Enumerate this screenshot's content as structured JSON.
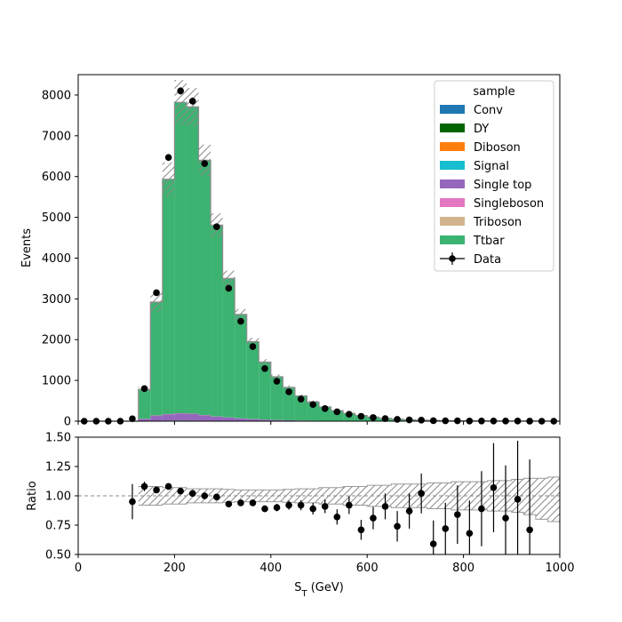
{
  "chart_data": {
    "type": "bar",
    "stacked": true,
    "x_bin_edges": [
      0,
      25,
      50,
      75,
      100,
      125,
      150,
      175,
      200,
      225,
      250,
      275,
      300,
      325,
      350,
      375,
      400,
      425,
      450,
      475,
      500,
      525,
      550,
      575,
      600,
      625,
      650,
      675,
      700,
      725,
      750,
      775,
      800,
      825,
      850,
      875,
      900,
      925,
      950,
      975,
      1000
    ],
    "series": [
      {
        "name": "Conv",
        "color": "#1f77b4",
        "values": [
          0,
          0,
          0,
          0,
          0,
          0,
          0,
          0,
          0,
          0,
          0,
          0,
          0,
          0,
          0,
          0,
          0,
          0,
          0,
          0,
          0,
          0,
          0,
          0,
          0,
          0,
          0,
          0,
          0,
          0,
          0,
          0,
          0,
          0,
          0,
          0,
          0,
          0,
          0,
          0
        ]
      },
      {
        "name": "DY",
        "color": "#006400",
        "values": [
          0,
          0,
          0,
          0,
          0,
          5,
          10,
          15,
          15,
          15,
          12,
          10,
          8,
          6,
          5,
          4,
          3,
          2,
          2,
          1,
          1,
          1,
          1,
          0,
          0,
          0,
          0,
          0,
          0,
          0,
          0,
          0,
          0,
          0,
          0,
          0,
          0,
          0,
          0,
          0
        ]
      },
      {
        "name": "Diboson",
        "color": "#ff7f0e",
        "values": [
          0,
          0,
          0,
          0,
          0,
          0,
          0,
          0,
          0,
          0,
          0,
          0,
          0,
          0,
          0,
          0,
          0,
          0,
          0,
          0,
          0,
          0,
          0,
          0,
          0,
          0,
          0,
          0,
          0,
          0,
          0,
          0,
          0,
          0,
          0,
          0,
          0,
          0,
          0,
          0
        ]
      },
      {
        "name": "Signal",
        "color": "#17becf",
        "values": [
          0,
          0,
          0,
          0,
          0,
          0,
          0,
          0,
          0,
          0,
          0,
          0,
          0,
          0,
          0,
          0,
          0,
          0,
          0,
          0,
          0,
          0,
          0,
          0,
          0,
          0,
          0,
          0,
          0,
          0,
          0,
          0,
          0,
          0,
          0,
          0,
          0,
          0,
          0,
          0
        ]
      },
      {
        "name": "Single top",
        "color": "#9467bd",
        "values": [
          0,
          0,
          0,
          0,
          0,
          50,
          120,
          150,
          170,
          160,
          130,
          100,
          80,
          60,
          45,
          35,
          25,
          20,
          15,
          12,
          9,
          7,
          5,
          4,
          3,
          3,
          2,
          2,
          1,
          1,
          1,
          1,
          0,
          0,
          0,
          0,
          0,
          0,
          0,
          0
        ]
      },
      {
        "name": "Singleboson",
        "color": "#e377c2",
        "values": [
          0,
          0,
          0,
          0,
          0,
          5,
          10,
          10,
          10,
          10,
          8,
          6,
          5,
          4,
          3,
          2,
          2,
          1,
          1,
          1,
          1,
          0,
          0,
          0,
          0,
          0,
          0,
          0,
          0,
          0,
          0,
          0,
          0,
          0,
          0,
          0,
          0,
          0,
          0,
          0
        ]
      },
      {
        "name": "Triboson",
        "color": "#d2b48c",
        "values": [
          0,
          0,
          0,
          0,
          0,
          0,
          0,
          0,
          0,
          0,
          0,
          0,
          0,
          0,
          0,
          0,
          0,
          0,
          0,
          0,
          0,
          0,
          0,
          0,
          0,
          0,
          0,
          0,
          0,
          0,
          0,
          0,
          0,
          0,
          0,
          0,
          0,
          0,
          0,
          0
        ]
      },
      {
        "name": "Ttbar",
        "color": "#3cb371",
        "values": [
          0,
          0,
          0,
          0,
          0,
          720,
          2780,
          5760,
          7625,
          7525,
          6250,
          4694,
          3407,
          2550,
          1895,
          1409,
          1060,
          807,
          602,
          456,
          339,
          252,
          184,
          136,
          97,
          67,
          47,
          33,
          24,
          18,
          14,
          10,
          8,
          6,
          5,
          4,
          3,
          2,
          2,
          1
        ]
      }
    ],
    "mc_total": [
      0,
      0,
      0,
      0,
      0,
      780,
      2920,
      5935,
      7820,
      7710,
      6400,
      4810,
      3500,
      2620,
      1948,
      1450,
      1090,
      830,
      620,
      470,
      350,
      260,
      190,
      140,
      100,
      70,
      49,
      35,
      25,
      19,
      15,
      11,
      8,
      6,
      5,
      4,
      3,
      2,
      2,
      1
    ],
    "uncertainty": {
      "hatched": true,
      "rel_up": [
        0,
        0,
        0,
        0,
        0.08,
        0.08,
        0.08,
        0.07,
        0.07,
        0.06,
        0.06,
        0.06,
        0.055,
        0.05,
        0.05,
        0.05,
        0.05,
        0.055,
        0.06,
        0.06,
        0.07,
        0.07,
        0.08,
        0.08,
        0.09,
        0.09,
        0.1,
        0.1,
        0.1,
        0.11,
        0.11,
        0.12,
        0.12,
        0.12,
        0.13,
        0.13,
        0.14,
        0.15,
        0.15,
        0.16
      ],
      "rel_down": [
        0,
        0,
        0,
        0,
        0.08,
        0.08,
        0.08,
        0.07,
        0.07,
        0.06,
        0.06,
        0.06,
        0.055,
        0.05,
        0.05,
        0.05,
        0.05,
        0.055,
        0.06,
        0.06,
        0.07,
        0.07,
        0.08,
        0.08,
        0.09,
        0.09,
        0.1,
        0.1,
        0.1,
        0.11,
        0.11,
        0.12,
        0.12,
        0.12,
        0.13,
        0.13,
        0.14,
        0.16,
        0.2,
        0.22
      ]
    },
    "data": {
      "name": "Data",
      "x": [
        12.5,
        37.5,
        62.5,
        87.5,
        112.5,
        137.5,
        162.5,
        187.5,
        212.5,
        237.5,
        262.5,
        287.5,
        312.5,
        337.5,
        362.5,
        387.5,
        412.5,
        437.5,
        462.5,
        487.5,
        512.5,
        537.5,
        562.5,
        587.5,
        612.5,
        637.5,
        662.5,
        687.5,
        712.5,
        737.5,
        762.5,
        787.5,
        812.5,
        837.5,
        862.5,
        887.5,
        912.5,
        937.5,
        962.5,
        987.5
      ],
      "y": [
        0,
        0,
        0,
        0,
        60,
        800,
        3150,
        6470,
        8100,
        7850,
        6320,
        4770,
        3260,
        2450,
        1830,
        1290,
        980,
        720,
        540,
        410,
        310,
        230,
        170,
        120,
        90,
        65,
        45,
        32,
        25,
        12,
        10,
        9,
        5,
        5,
        5,
        3,
        3,
        1,
        0,
        0
      ],
      "ratio": [
        null,
        null,
        null,
        null,
        0.95,
        1.08,
        1.05,
        1.08,
        1.04,
        1.02,
        1.0,
        0.99,
        0.93,
        0.94,
        0.94,
        0.89,
        0.9,
        0.92,
        0.92,
        0.89,
        0.91,
        0.82,
        0.92,
        0.71,
        0.81,
        0.91,
        0.74,
        0.87,
        1.02,
        0.59,
        0.72,
        0.84,
        0.68,
        0.89,
        1.07,
        0.81,
        0.97,
        0.71,
        null,
        null
      ],
      "ratio_err": [
        null,
        null,
        null,
        null,
        0.15,
        0.04,
        0.02,
        0.015,
        0.012,
        0.012,
        0.012,
        0.015,
        0.018,
        0.02,
        0.025,
        0.028,
        0.032,
        0.038,
        0.043,
        0.05,
        0.058,
        0.065,
        0.075,
        0.085,
        0.095,
        0.11,
        0.13,
        0.15,
        0.17,
        0.2,
        0.22,
        0.25,
        0.28,
        0.32,
        0.38,
        0.45,
        0.5,
        0.6,
        null,
        null
      ]
    },
    "xlabel": "S",
    "xlabel_sub": "T",
    "xlabel_unit": " (GeV)",
    "ylabel": "Events",
    "ratio_ylabel": "Ratio",
    "xlim": [
      0,
      1000
    ],
    "ylim": [
      0,
      8500
    ],
    "ratio_ylim": [
      0.5,
      1.5
    ],
    "x_ticks": [
      0,
      200,
      400,
      600,
      800,
      1000
    ],
    "y_ticks": [
      0,
      1000,
      2000,
      3000,
      4000,
      5000,
      6000,
      7000,
      8000
    ],
    "ratio_y_ticks": [
      0.5,
      0.75,
      1.0,
      1.25,
      1.5
    ],
    "ratio_y_tick_labels": [
      "0.50",
      "0.75",
      "1.00",
      "1.25",
      "1.50"
    ],
    "legend": {
      "title": "sample",
      "placement": "top-right"
    },
    "grid": false
  }
}
